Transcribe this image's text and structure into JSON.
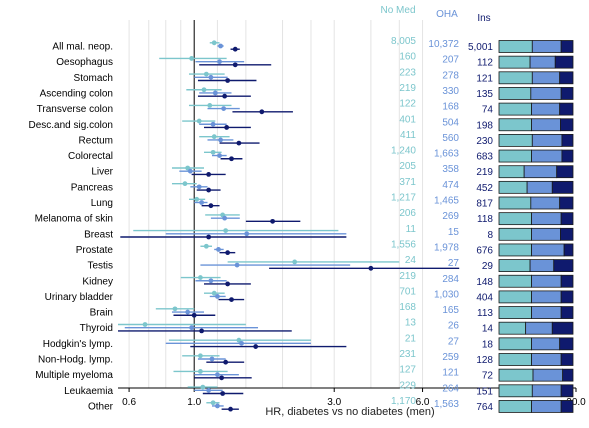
{
  "chart_data": {
    "type": "forest",
    "xlabel": "HR, diabetes vs no diabetes (men)",
    "xscale": "log",
    "xlim": [
      0.55,
      20.0
    ],
    "xticks": [
      0.6,
      1.0,
      3.0,
      6.0,
      20.0
    ],
    "xtick_labels": [
      "0.6",
      "1.0",
      "3.0",
      "6.0",
      "20.0"
    ],
    "reference_line": 1.0,
    "grid": "vertical",
    "series": [
      {
        "name": "No Med",
        "color": "#7cc6cc"
      },
      {
        "name": "OHA",
        "color": "#6a93d8"
      },
      {
        "name": "Ins",
        "color": "#0f1a6e"
      }
    ],
    "categories": [
      "All mal. neop.",
      "Oesophagus",
      "Stomach",
      "Ascending colon",
      "Transverse colon",
      "Desc.and sig.colon",
      "Rectum",
      "Colorectal",
      "Liver",
      "Pancreas",
      "Lung",
      "Melanoma of skin",
      "Breast",
      "Prostate",
      "Testis",
      "Kidney",
      "Urinary bladder",
      "Brain",
      "Thyroid",
      "Hodgkin's lymp.",
      "Non-Hodg. lymp.",
      "Multiple myeloma",
      "Leukaemia",
      "Other"
    ],
    "rows": [
      {
        "est": [
          1.17,
          1.23,
          1.38
        ],
        "lo": [
          1.13,
          1.2,
          1.33
        ],
        "hi": [
          1.22,
          1.26,
          1.43
        ],
        "n": [
          "8,005",
          "10,372",
          "5,001"
        ],
        "bar": [
          0.45,
          0.84
        ]
      },
      {
        "est": [
          0.98,
          1.22,
          1.38
        ],
        "lo": [
          0.76,
          1.01,
          1.04
        ],
        "hi": [
          1.29,
          1.48,
          1.83
        ],
        "n": [
          "160",
          "207",
          "112"
        ],
        "bar": [
          0.42,
          0.76
        ]
      },
      {
        "est": [
          1.1,
          1.14,
          1.3
        ],
        "lo": [
          0.96,
          1.0,
          1.03
        ],
        "hi": [
          1.27,
          1.3,
          1.63
        ],
        "n": [
          "223",
          "278",
          "121"
        ],
        "bar": [
          0.45,
          0.82
        ]
      },
      {
        "est": [
          1.08,
          1.18,
          1.27
        ],
        "lo": [
          0.94,
          1.04,
          1.03
        ],
        "hi": [
          1.24,
          1.34,
          1.56
        ],
        "n": [
          "219",
          "330",
          "135"
        ],
        "bar": [
          0.43,
          0.84
        ]
      },
      {
        "est": [
          1.13,
          1.26,
          1.7
        ],
        "lo": [
          0.96,
          1.11,
          1.35
        ],
        "hi": [
          1.34,
          1.43,
          2.17
        ],
        "n": [
          "122",
          "168",
          "74"
        ],
        "bar": [
          0.44,
          0.82
        ]
      },
      {
        "est": [
          1.04,
          1.16,
          1.29
        ],
        "lo": [
          0.91,
          1.04,
          1.08
        ],
        "hi": [
          1.18,
          1.29,
          1.56
        ],
        "n": [
          "401",
          "504",
          "198"
        ],
        "bar": [
          0.44,
          0.83
        ]
      },
      {
        "est": [
          1.17,
          1.23,
          1.42
        ],
        "lo": [
          1.04,
          1.11,
          1.22
        ],
        "hi": [
          1.32,
          1.36,
          1.67
        ],
        "n": [
          "411",
          "560",
          "230"
        ],
        "bar": [
          0.45,
          0.85
        ]
      },
      {
        "est": [
          1.16,
          1.22,
          1.34
        ],
        "lo": [
          1.08,
          1.15,
          1.23
        ],
        "hi": [
          1.24,
          1.29,
          1.46
        ],
        "n": [
          "1,240",
          "1,663",
          "683"
        ],
        "bar": [
          0.44,
          0.85
        ]
      },
      {
        "est": [
          0.95,
          0.97,
          1.12
        ],
        "lo": [
          0.84,
          0.89,
          0.98
        ],
        "hi": [
          1.08,
          1.06,
          1.28
        ],
        "n": [
          "205",
          "358",
          "219"
        ],
        "bar": [
          0.34,
          0.78
        ]
      },
      {
        "est": [
          0.93,
          1.04,
          1.12
        ],
        "lo": [
          0.84,
          0.97,
          1.02
        ],
        "hi": [
          1.02,
          1.11,
          1.23
        ],
        "n": [
          "371",
          "474",
          "452"
        ],
        "bar": [
          0.38,
          0.72
        ]
      },
      {
        "est": [
          1.02,
          1.06,
          1.14
        ],
        "lo": [
          0.96,
          1.0,
          1.06
        ],
        "hi": [
          1.09,
          1.11,
          1.22
        ],
        "n": [
          "1,217",
          "1,465",
          "817"
        ],
        "bar": [
          0.43,
          0.82
        ]
      },
      {
        "est": [
          1.25,
          1.27,
          1.85
        ],
        "lo": [
          1.09,
          1.14,
          1.5
        ],
        "hi": [
          1.43,
          1.43,
          2.3
        ],
        "n": [
          "206",
          "269",
          "118"
        ],
        "bar": [
          0.44,
          0.84
        ]
      },
      {
        "est": [
          1.28,
          1.51,
          1.12
        ],
        "lo": [
          0.62,
          0.8,
          0.56
        ],
        "hi": [
          3.1,
          3.3,
          3.3
        ],
        "n": [
          "11",
          "15",
          "8"
        ],
        "bar": [
          0.44,
          0.83
        ]
      },
      {
        "est": [
          1.1,
          1.21,
          1.3
        ],
        "lo": [
          1.05,
          1.17,
          1.22
        ],
        "hi": [
          1.15,
          1.26,
          1.38
        ],
        "n": [
          "1,556",
          "1,978",
          "676"
        ],
        "bar": [
          0.44,
          0.88
        ]
      },
      {
        "est": [
          2.2,
          1.4,
          4.0
        ],
        "lo": [
          1.3,
          1.05,
          1.8
        ],
        "hi": [
          5.0,
          3.4,
          8.0
        ],
        "n": [
          "24",
          "27",
          "29"
        ],
        "bar": [
          0.42,
          0.74
        ]
      },
      {
        "est": [
          1.05,
          1.14,
          1.3
        ],
        "lo": [
          0.9,
          1.01,
          1.08
        ],
        "hi": [
          1.23,
          1.29,
          1.56
        ],
        "n": [
          "219",
          "284",
          "148"
        ],
        "bar": [
          0.44,
          0.84
        ]
      },
      {
        "est": [
          1.17,
          1.2,
          1.34
        ],
        "lo": [
          1.08,
          1.13,
          1.21
        ],
        "hi": [
          1.27,
          1.28,
          1.48
        ],
        "n": [
          "701",
          "1,030",
          "404"
        ],
        "bar": [
          0.44,
          0.84
        ]
      },
      {
        "est": [
          0.86,
          0.95,
          1.0
        ],
        "lo": [
          0.74,
          0.84,
          0.85
        ],
        "hi": [
          1.0,
          1.08,
          1.18
        ],
        "n": [
          "168",
          "165",
          "113"
        ],
        "bar": [
          0.44,
          0.84
        ]
      },
      {
        "est": [
          0.68,
          0.98,
          1.06
        ],
        "lo": [
          0.55,
          0.58,
          0.55
        ],
        "hi": [
          1.5,
          1.65,
          2.15
        ],
        "n": [
          "13",
          "26",
          "14"
        ],
        "bar": [
          0.36,
          0.72
        ]
      },
      {
        "est": [
          1.42,
          1.45,
          1.62
        ],
        "lo": [
          0.82,
          0.8,
          0.97
        ],
        "hi": [
          2.5,
          2.5,
          3.3
        ],
        "n": [
          "21",
          "27",
          "18"
        ],
        "bar": [
          0.44,
          0.82
        ]
      },
      {
        "est": [
          1.05,
          1.15,
          1.28
        ],
        "lo": [
          0.91,
          1.03,
          1.1
        ],
        "hi": [
          1.22,
          1.28,
          1.48
        ],
        "n": [
          "231",
          "259",
          "128"
        ],
        "bar": [
          0.44,
          0.84
        ]
      },
      {
        "est": [
          1.05,
          1.2,
          1.24
        ],
        "lo": [
          0.85,
          1.0,
          1.0
        ],
        "hi": [
          1.3,
          1.42,
          1.57
        ],
        "n": [
          "127",
          "121",
          "72"
        ],
        "bar": [
          0.46,
          0.86
        ]
      },
      {
        "est": [
          1.07,
          1.12,
          1.25
        ],
        "lo": [
          0.95,
          1.0,
          1.07
        ],
        "hi": [
          1.2,
          1.25,
          1.47
        ],
        "n": [
          "229",
          "264",
          "151"
        ],
        "bar": [
          0.45,
          0.84
        ]
      },
      {
        "est": [
          1.16,
          1.2,
          1.33
        ],
        "lo": [
          1.1,
          1.15,
          1.24
        ],
        "hi": [
          1.22,
          1.26,
          1.42
        ],
        "n": [
          "1,170",
          "1,563",
          "764"
        ],
        "bar": [
          0.44,
          0.84
        ]
      }
    ]
  }
}
